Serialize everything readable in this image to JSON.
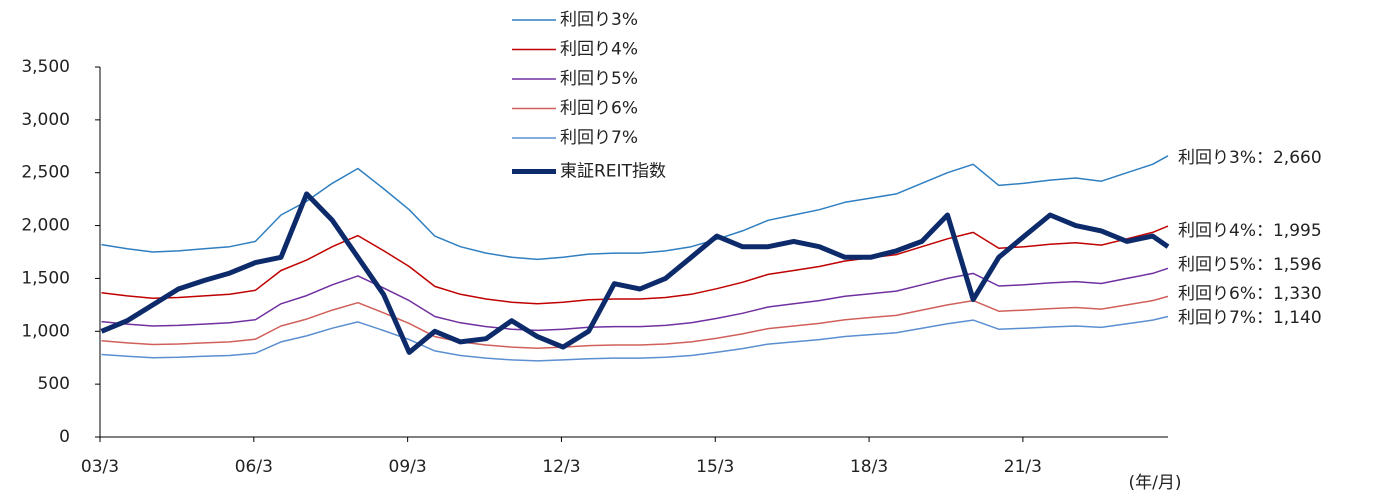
{
  "chart_data": {
    "type": "line",
    "x_axis_label": "(年/月)",
    "x": [
      2003.2,
      2003.7,
      2004.2,
      2004.7,
      2005.2,
      2005.7,
      2006.2,
      2006.7,
      2007.2,
      2007.7,
      2008.2,
      2008.7,
      2009.2,
      2009.7,
      2010.2,
      2010.7,
      2011.2,
      2011.7,
      2012.2,
      2012.7,
      2013.2,
      2013.7,
      2014.2,
      2014.7,
      2015.2,
      2015.7,
      2016.2,
      2016.7,
      2017.2,
      2017.7,
      2018.2,
      2018.7,
      2019.2,
      2019.7,
      2020.2,
      2020.7,
      2021.2,
      2021.7,
      2022.2,
      2022.7,
      2023.2,
      2023.7,
      2024.0
    ],
    "xlim": [
      2003.17,
      2024.0
    ],
    "xticks": [
      {
        "value": 2003.17,
        "label": "03/3"
      },
      {
        "value": 2006.17,
        "label": "06/3"
      },
      {
        "value": 2009.17,
        "label": "09/3"
      },
      {
        "value": 2012.17,
        "label": "12/3"
      },
      {
        "value": 2015.17,
        "label": "15/3"
      },
      {
        "value": 2018.17,
        "label": "18/3"
      },
      {
        "value": 2021.17,
        "label": "21/3"
      }
    ],
    "ylim": [
      0,
      3500
    ],
    "yticks": [
      0,
      500,
      {
        "value": 1000,
        "label": "1,000"
      },
      {
        "value": 1500,
        "label": "1,500"
      },
      {
        "value": 2000,
        "label": "2,000"
      },
      {
        "value": 2500,
        "label": "2,500"
      },
      {
        "value": 3000,
        "label": "3,000"
      },
      {
        "value": 3500,
        "label": "3,500"
      }
    ],
    "series": [
      {
        "name": "利回り3%",
        "color": "#2f7fc1",
        "width": 1.5,
        "end_label": "利回り3%：2,660",
        "end_label_color": "#4472c4",
        "values": [
          1820,
          1780,
          1750,
          1760,
          1780,
          1800,
          1850,
          2100,
          2230,
          2400,
          2540,
          2350,
          2150,
          1900,
          1800,
          1740,
          1700,
          1680,
          1700,
          1730,
          1740,
          1740,
          1760,
          1800,
          1870,
          1950,
          2050,
          2100,
          2150,
          2220,
          2260,
          2300,
          2400,
          2500,
          2580,
          2380,
          2400,
          2430,
          2450,
          2420,
          2500,
          2580,
          2660
        ]
      },
      {
        "name": "利回り4%",
        "color": "#c00000",
        "width": 1.5,
        "end_label": "利回り4%：1,995",
        "end_label_color": "#c00000",
        "values": [
          1365,
          1335,
          1313,
          1320,
          1335,
          1350,
          1388,
          1575,
          1673,
          1800,
          1905,
          1763,
          1613,
          1425,
          1350,
          1305,
          1275,
          1260,
          1275,
          1298,
          1305,
          1305,
          1320,
          1350,
          1403,
          1463,
          1538,
          1575,
          1613,
          1665,
          1695,
          1725,
          1800,
          1875,
          1935,
          1785,
          1800,
          1823,
          1838,
          1815,
          1875,
          1935,
          1995
        ]
      },
      {
        "name": "利回り5%",
        "color": "#7030a0",
        "width": 1.5,
        "end_label": "利回り5%：1,596",
        "end_label_color": "#7030a0",
        "values": [
          1092,
          1068,
          1050,
          1056,
          1068,
          1080,
          1110,
          1260,
          1338,
          1440,
          1524,
          1410,
          1290,
          1140,
          1080,
          1044,
          1020,
          1008,
          1020,
          1038,
          1044,
          1044,
          1056,
          1080,
          1122,
          1170,
          1230,
          1260,
          1290,
          1332,
          1356,
          1380,
          1440,
          1500,
          1548,
          1428,
          1440,
          1458,
          1470,
          1452,
          1500,
          1548,
          1596
        ]
      },
      {
        "name": "利回り6%",
        "color": "#d0605a",
        "width": 1.5,
        "end_label": "利回り6%：1,330",
        "end_label_color": "#ed7d31",
        "values": [
          910,
          890,
          875,
          880,
          890,
          900,
          925,
          1050,
          1115,
          1200,
          1270,
          1175,
          1075,
          950,
          900,
          870,
          850,
          840,
          850,
          865,
          870,
          870,
          880,
          900,
          935,
          975,
          1025,
          1050,
          1075,
          1110,
          1130,
          1150,
          1200,
          1250,
          1290,
          1190,
          1200,
          1215,
          1225,
          1210,
          1250,
          1290,
          1330
        ]
      },
      {
        "name": "利回り7%",
        "color": "#5b8fd0",
        "width": 1.5,
        "end_label": "利回り7%：1,140",
        "end_label_color": "#5b9bd5",
        "values": [
          780,
          763,
          750,
          754,
          763,
          771,
          793,
          900,
          956,
          1029,
          1089,
          1007,
          921,
          814,
          771,
          746,
          729,
          720,
          729,
          741,
          746,
          746,
          754,
          771,
          801,
          836,
          879,
          900,
          921,
          951,
          969,
          986,
          1029,
          1071,
          1106,
          1020,
          1029,
          1041,
          1050,
          1037,
          1071,
          1106,
          1140
        ]
      },
      {
        "name": "東証REIT指数",
        "color": "#0d2b6b",
        "width": 5,
        "values": [
          1000,
          1100,
          1250,
          1400,
          1480,
          1550,
          1650,
          1700,
          2300,
          2050,
          1700,
          1350,
          800,
          1000,
          900,
          930,
          1100,
          950,
          850,
          1000,
          1450,
          1400,
          1500,
          1700,
          1900,
          1800,
          1800,
          1850,
          1800,
          1700,
          1700,
          1760,
          1850,
          2100,
          1300,
          1700,
          1900,
          2100,
          2000,
          1950,
          1850,
          1900,
          1800
        ]
      }
    ]
  }
}
